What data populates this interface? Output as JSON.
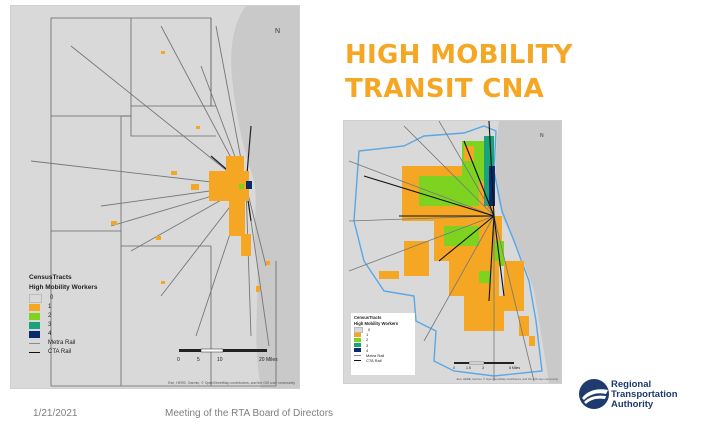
{
  "title": {
    "line1": "HIGH MOBILITY",
    "line2": "TRANSIT CNA"
  },
  "colors": {
    "title": "#f5a623",
    "cat0": "#d9d9d9",
    "cat1": "#f5a623",
    "cat2": "#7ed321",
    "cat3": "#1aa37a",
    "cat4": "#0b2a6b",
    "metra": "#8a8a8a",
    "cta": "#111111",
    "rta_border": "#5aa7e6"
  },
  "map1": {
    "legend": {
      "layer": "CensusTracts",
      "field": "High Mobility Workers",
      "classes": [
        "0",
        "1",
        "2",
        "3",
        "4"
      ],
      "metra": "Metra Rail",
      "cta": "CTA Rail"
    },
    "scale": {
      "labels": [
        "0",
        "5",
        "10",
        "20 Miles"
      ]
    },
    "north": "N",
    "attribution": "Esri, HERE, Garmin, © OpenStreetMap contributors, and the GIS user community"
  },
  "map2": {
    "legend": {
      "layer": "CensusTracts",
      "field": "High Mobility Workers",
      "classes": [
        "0",
        "1",
        "2",
        "3",
        "4"
      ],
      "metra": "Metra Rail",
      "cta": "CTA Rail"
    },
    "scale": {
      "labels": [
        "0",
        "1.5",
        "3",
        "6 Miles"
      ]
    },
    "north": "N",
    "attribution": "Esri, HERE, Garmin, © OpenStreetMap contributors, and the GIS user community"
  },
  "footer": {
    "date": "1/21/2021",
    "meeting": "Meeting of the RTA Board of Directors"
  },
  "logo": {
    "line1": "Regional",
    "line2": "Transportation",
    "line3": "Authority",
    "mark": "RTA"
  }
}
